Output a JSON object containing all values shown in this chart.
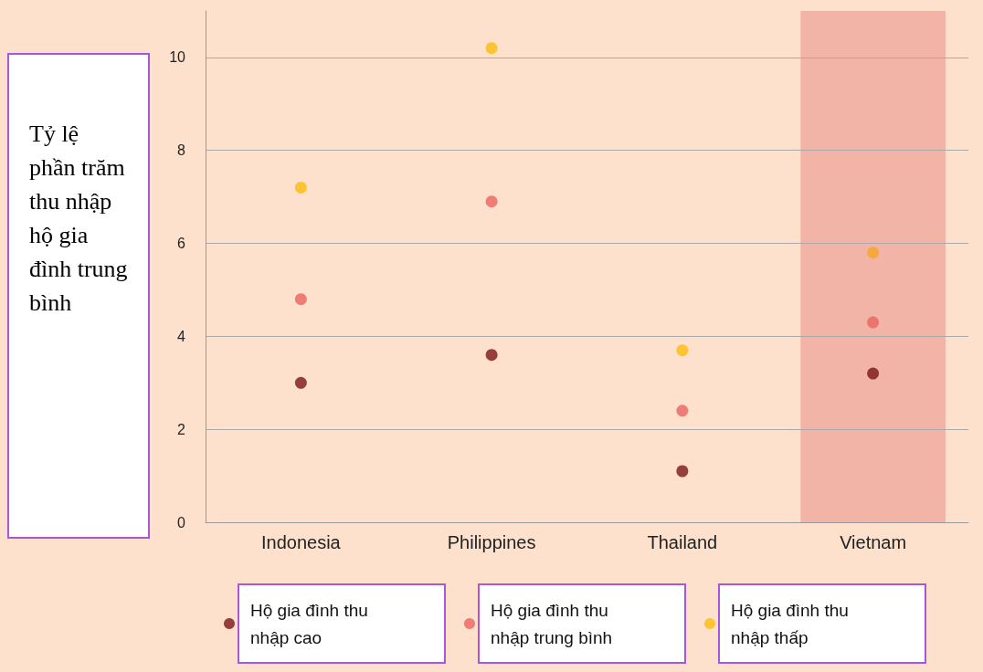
{
  "chart_data": {
    "type": "scatter",
    "ylabel": "Tỷ lệ phần trăm thu nhập hộ gia đình trung bình",
    "categories": [
      "Indonesia",
      "Philippines",
      "Thailand",
      "Vietnam"
    ],
    "series": [
      {
        "name": "Hộ gia đình thu nhập cao",
        "color": "#7b1518",
        "values": [
          3.0,
          3.6,
          1.1,
          3.2
        ]
      },
      {
        "name": "Hộ gia đình thu nhập trung bình",
        "color": "#e9645f",
        "values": [
          4.8,
          6.9,
          2.4,
          4.3
        ]
      },
      {
        "name": "Hộ gia đình thu nhập thấp",
        "color": "#fbbd0b",
        "values": [
          7.2,
          10.2,
          3.7,
          5.8
        ],
        "colors": [
          "#fbbd0b",
          "#fbbd0b",
          "#fbbd0b",
          "#f5a623"
        ]
      }
    ],
    "bands": [
      {
        "axis": "x",
        "from": "Vietnam",
        "to": "Vietnam",
        "color": "#f2b4a6"
      }
    ],
    "ylim": [
      0,
      11
    ],
    "yticks": [
      0,
      2,
      4,
      6,
      8,
      10
    ],
    "grid": "y",
    "legend": "bottom",
    "marker": "circle"
  }
}
